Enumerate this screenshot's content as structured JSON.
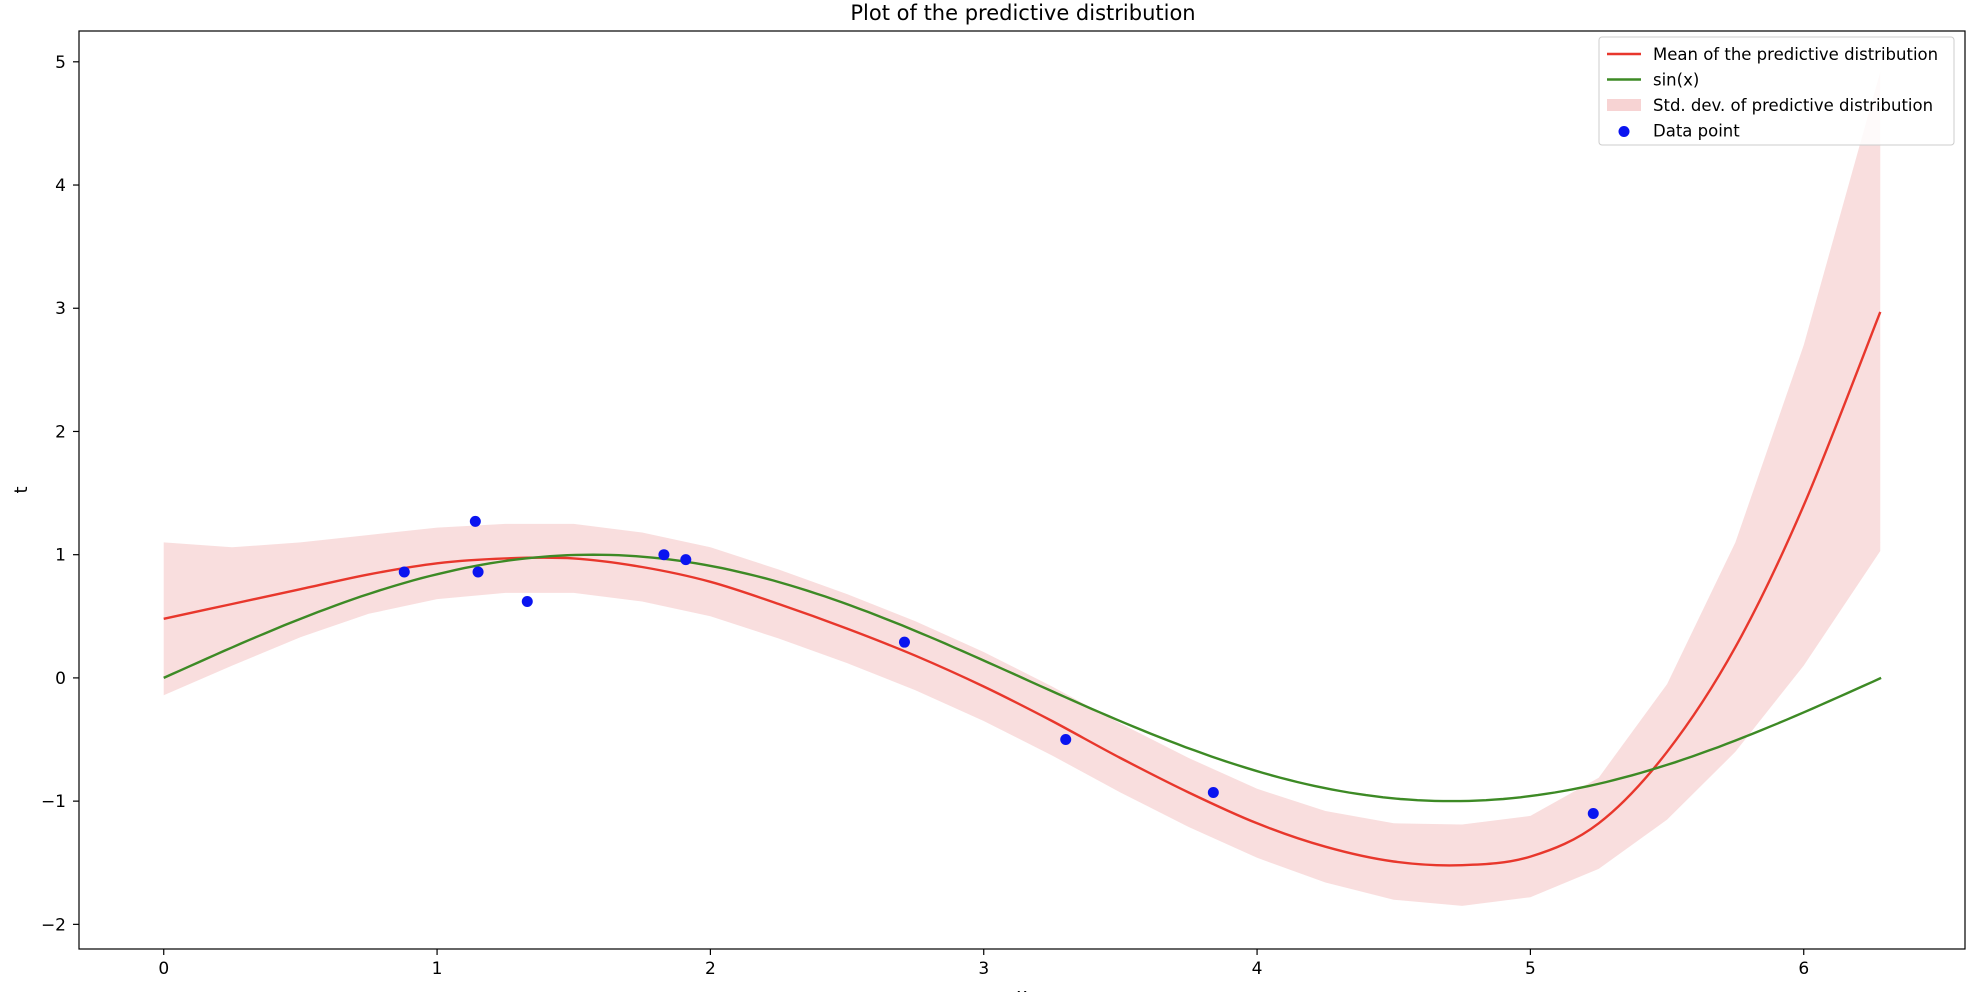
{
  "chart_data": {
    "type": "line",
    "title": "Plot of the predictive distribution",
    "xlabel": "x",
    "ylabel": "t",
    "xlim": [
      -0.31,
      6.59
    ],
    "ylim": [
      -2.2,
      5.25
    ],
    "xticks": [
      0,
      1,
      2,
      3,
      4,
      5,
      6
    ],
    "yticks": [
      -2,
      -1,
      0,
      1,
      2,
      3,
      4,
      5
    ],
    "grid": false,
    "legend_position": "top-right",
    "series": [
      {
        "name": "Mean of the predictive distribution",
        "kind": "line",
        "color": "#e8372c",
        "x": [
          0,
          0.25,
          0.5,
          0.75,
          1.0,
          1.25,
          1.5,
          1.75,
          2.0,
          2.25,
          2.5,
          2.75,
          3.0,
          3.25,
          3.5,
          3.75,
          4.0,
          4.25,
          4.5,
          4.75,
          5.0,
          5.25,
          5.5,
          5.75,
          6.0,
          6.28
        ],
        "y": [
          0.48,
          0.6,
          0.72,
          0.84,
          0.93,
          0.97,
          0.97,
          0.9,
          0.78,
          0.6,
          0.4,
          0.18,
          -0.07,
          -0.35,
          -0.65,
          -0.93,
          -1.18,
          -1.37,
          -1.49,
          -1.52,
          -1.45,
          -1.18,
          -0.6,
          0.25,
          1.4,
          2.97
        ]
      },
      {
        "name": "sin(x)",
        "kind": "line",
        "color": "#3d8a25",
        "function": "sin",
        "x_range": [
          0,
          6.2832
        ]
      },
      {
        "name": "Std. dev. of predictive distribution",
        "kind": "band",
        "color": "#f7d3d3",
        "x": [
          0,
          0.25,
          0.5,
          0.75,
          1.0,
          1.25,
          1.5,
          1.75,
          2.0,
          2.25,
          2.5,
          2.75,
          3.0,
          3.25,
          3.5,
          3.75,
          4.0,
          4.25,
          4.5,
          4.75,
          5.0,
          5.25,
          5.5,
          5.75,
          6.0,
          6.28
        ],
        "lower": [
          -0.14,
          0.1,
          0.33,
          0.52,
          0.64,
          0.69,
          0.69,
          0.62,
          0.5,
          0.32,
          0.12,
          -0.1,
          -0.35,
          -0.63,
          -0.93,
          -1.21,
          -1.46,
          -1.66,
          -1.8,
          -1.85,
          -1.78,
          -1.55,
          -1.15,
          -0.6,
          0.1,
          1.03
        ],
        "upper": [
          1.1,
          1.06,
          1.1,
          1.16,
          1.22,
          1.25,
          1.25,
          1.18,
          1.06,
          0.88,
          0.68,
          0.46,
          0.21,
          -0.07,
          -0.37,
          -0.65,
          -0.9,
          -1.08,
          -1.18,
          -1.19,
          -1.12,
          -0.81,
          -0.05,
          1.1,
          2.7,
          4.92
        ]
      },
      {
        "name": "Data point",
        "kind": "scatter",
        "color": "#0a14f0",
        "x": [
          0.88,
          1.14,
          1.15,
          1.33,
          1.83,
          1.91,
          2.71,
          3.3,
          3.84,
          5.23
        ],
        "y": [
          0.86,
          1.27,
          0.86,
          0.62,
          1.0,
          0.96,
          0.29,
          -0.5,
          -0.93,
          -1.1
        ]
      }
    ]
  }
}
